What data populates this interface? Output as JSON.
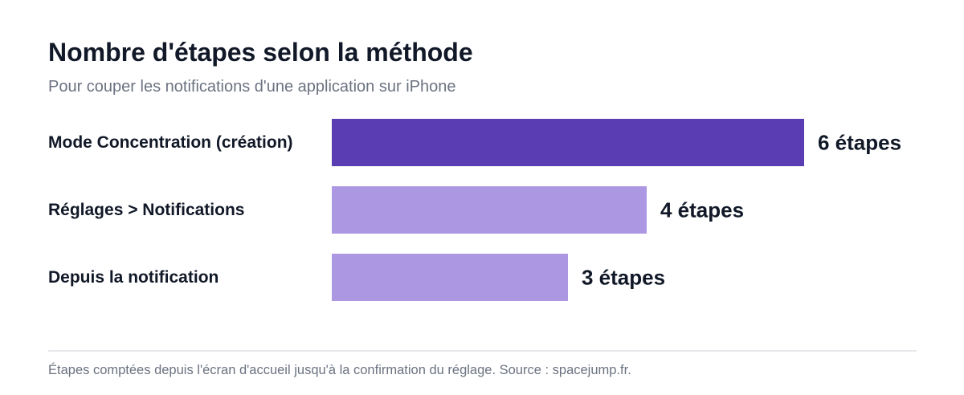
{
  "header": {
    "title": "Nombre d'étapes selon la méthode",
    "subtitle": "Pour couper les notifications d'une application sur iPhone"
  },
  "footer": {
    "note": "Étapes comptées depuis l'écran d'accueil jusqu'à la confirmation du réglage. Source : spacejump.fr."
  },
  "chart_data": {
    "type": "bar",
    "orientation": "horizontal",
    "title": "Nombre d'étapes selon la méthode",
    "subtitle": "Pour couper les notifications d'une application sur iPhone",
    "categories": [
      "Mode Concentration (création)",
      "Réglages > Notifications",
      "Depuis la notification"
    ],
    "values": [
      6,
      4,
      3
    ],
    "data_labels": [
      "6 étapes",
      "4 étapes",
      "3 étapes"
    ],
    "xlim": [
      0,
      6
    ],
    "grid": false,
    "legend": "none",
    "colors": {
      "highlight": "#5a3db3",
      "default": "#ac97e2",
      "category_text": "#111827",
      "value_text": "#111827"
    }
  }
}
